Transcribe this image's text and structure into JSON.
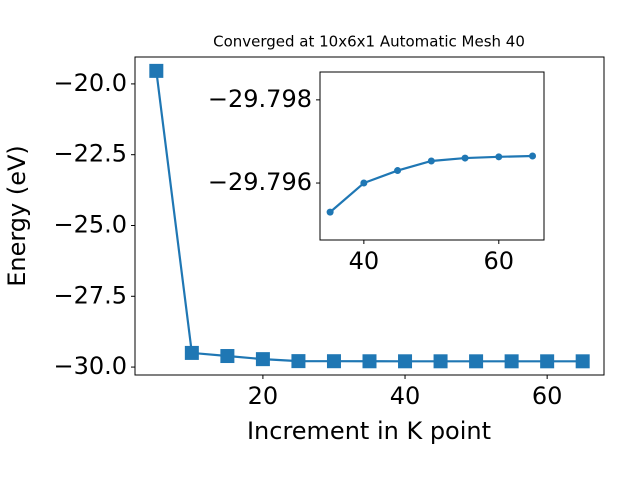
{
  "chart_data": [
    {
      "type": "line",
      "title": "Converged at 10x6x1 Automatic Mesh 40",
      "xlabel": "Increment in K point",
      "ylabel": "Energy (eV)",
      "x": [
        5,
        10,
        15,
        20,
        25,
        30,
        35,
        40,
        45,
        50,
        55,
        60,
        65
      ],
      "values": [
        -19.54,
        -29.5,
        -29.61,
        -29.72,
        -29.79,
        -29.793,
        -29.7953,
        -29.796,
        -29.7963,
        -29.79653,
        -29.7966,
        -29.79663,
        -29.79665
      ],
      "color": "#1f77b4",
      "marker": "square",
      "xlim": [
        2,
        68
      ],
      "ylim": [
        -30.28,
        -19.05
      ],
      "xticks": [
        20,
        40,
        60
      ],
      "yticks": [
        {
          "value": -20,
          "label": "−20.0"
        },
        {
          "value": -22.5,
          "label": "−22.5"
        },
        {
          "value": -25,
          "label": "−25.0"
        },
        {
          "value": -27.5,
          "label": "−27.5"
        },
        {
          "value": -30,
          "label": "−30.0"
        }
      ]
    },
    {
      "type": "line",
      "x": [
        35,
        40,
        45,
        50,
        55,
        60,
        65
      ],
      "values": [
        -29.7953,
        -29.796,
        -29.7963,
        -29.79653,
        -29.7966,
        -29.79663,
        -29.79665
      ],
      "color": "#1f77b4",
      "marker": "circle",
      "xlim": [
        33.5,
        66.7
      ],
      "ylim": [
        -29.79463,
        -29.79867
      ],
      "xticks": [
        40,
        60
      ],
      "yticks": [
        {
          "value": -29.798,
          "label": "−29.798"
        },
        {
          "value": -29.796,
          "label": "−29.796"
        }
      ]
    }
  ]
}
